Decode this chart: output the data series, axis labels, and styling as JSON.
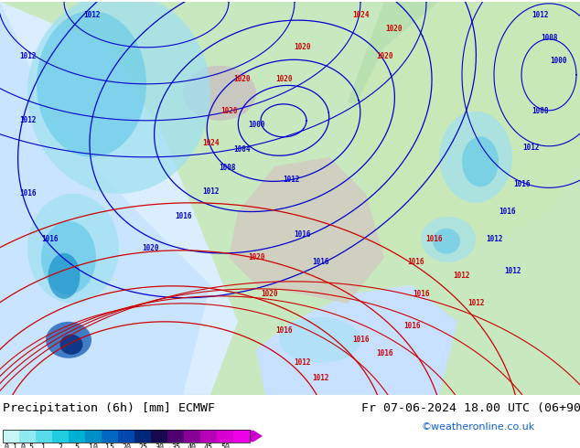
{
  "title_left": "Precipitation (6h) [mm] ECMWF",
  "title_right": "Fr 07-06-2024 18.00 UTC (06+90)",
  "watermark": "©weatheronline.co.uk",
  "colorbar_labels": [
    "0.1",
    "0.5",
    "1",
    "2",
    "5",
    "10",
    "15",
    "20",
    "25",
    "30",
    "35",
    "40",
    "45",
    "50"
  ],
  "colorbar_colors": [
    "#c8f5f5",
    "#90e8f0",
    "#58dcea",
    "#20cce0",
    "#00b0d0",
    "#0090c8",
    "#0068c0",
    "#0048b0",
    "#002878",
    "#180850",
    "#500070",
    "#880098",
    "#b800b8",
    "#d800d0",
    "#ee00e8"
  ],
  "arrow_color": "#cc00cc",
  "bg_color": "#ffffff",
  "map_colors": {
    "sea_atlantic": "#c8e8ff",
    "land_green": "#c8e8c0",
    "land_light": "#d8e8c8",
    "land_gray": "#c8c8c8",
    "precip_light": "#a0e0f0",
    "precip_mid": "#60c8e8",
    "precip_dark": "#1890c8",
    "precip_blue": "#0850b0"
  },
  "title_fontsize": 9.5,
  "watermark_color": "#1060d0",
  "label_fontsize": 7,
  "isobar_blue": "#0000cc",
  "isobar_red": "#cc0000"
}
